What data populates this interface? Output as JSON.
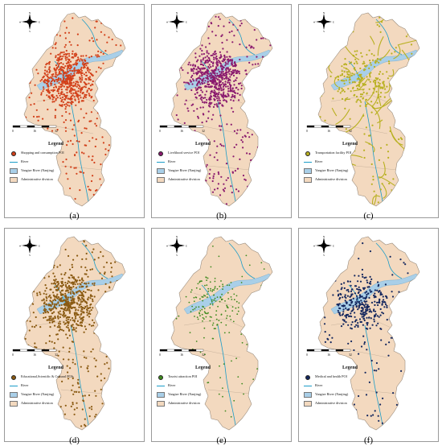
{
  "legend_title": "Legend",
  "river_label": "River",
  "yangtze_label": "Yangtze River (Nanjing)",
  "admin_label": "Administrative division",
  "scale_ticks": [
    "0",
    "16",
    "32"
  ],
  "compass_letters": {
    "n": "N",
    "s": "S",
    "e": "E",
    "w": "W"
  },
  "colors": {
    "land": "#f3d9bf",
    "river": "#1a9cc8",
    "yangtze": "#a9cfe8",
    "boundary": "#9a8c7d"
  },
  "panels": [
    {
      "caption": "(a)",
      "poi_label": "Shopping and consumption POI",
      "poi_color": "#d2401a",
      "density": "high"
    },
    {
      "caption": "(b)",
      "poi_label": "Livelihood service POI",
      "poi_color": "#8a1a6e",
      "density": "high"
    },
    {
      "caption": "(c)",
      "poi_label": "Transportation facility POI",
      "poi_color": "#b8b020",
      "density": "network"
    },
    {
      "caption": "(d)",
      "poi_label": "Educational,Scientific & Cultural POIs",
      "poi_color": "#8a5a12",
      "density": "high"
    },
    {
      "caption": "(e)",
      "poi_label": "Tourist attraction POI",
      "poi_color": "#3f8a1e",
      "density": "low"
    },
    {
      "caption": "(f)",
      "poi_label": "Medical and health POI",
      "poi_color": "#14275e",
      "density": "medium"
    }
  ]
}
